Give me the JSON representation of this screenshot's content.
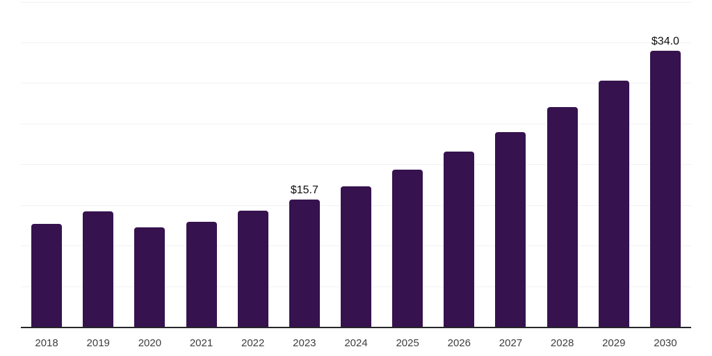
{
  "chart_data": {
    "type": "bar",
    "categories": [
      "2018",
      "2019",
      "2020",
      "2021",
      "2022",
      "2023",
      "2024",
      "2025",
      "2026",
      "2027",
      "2028",
      "2029",
      "2030"
    ],
    "values": [
      12.7,
      14.2,
      12.2,
      12.9,
      14.3,
      15.7,
      17.3,
      19.3,
      21.6,
      24.0,
      27.0,
      30.3,
      34.0
    ],
    "bar_labels": [
      "",
      "",
      "",
      "",
      "",
      "$15.7",
      "",
      "",
      "",
      "",
      "",
      "",
      "$34.0"
    ],
    "title": "",
    "xlabel": "",
    "ylabel": "",
    "ylim": [
      0,
      40
    ],
    "grid_step": 5,
    "grid": true,
    "legend": false,
    "y_tick_labels_visible": false,
    "colors": {
      "bar": "#36124E",
      "axis_line": "#26262a",
      "gridline": "#f2f2f2",
      "data_label": "#0d0d0d",
      "tick_label": "#3d3d3d",
      "background": "#ffffff"
    }
  }
}
